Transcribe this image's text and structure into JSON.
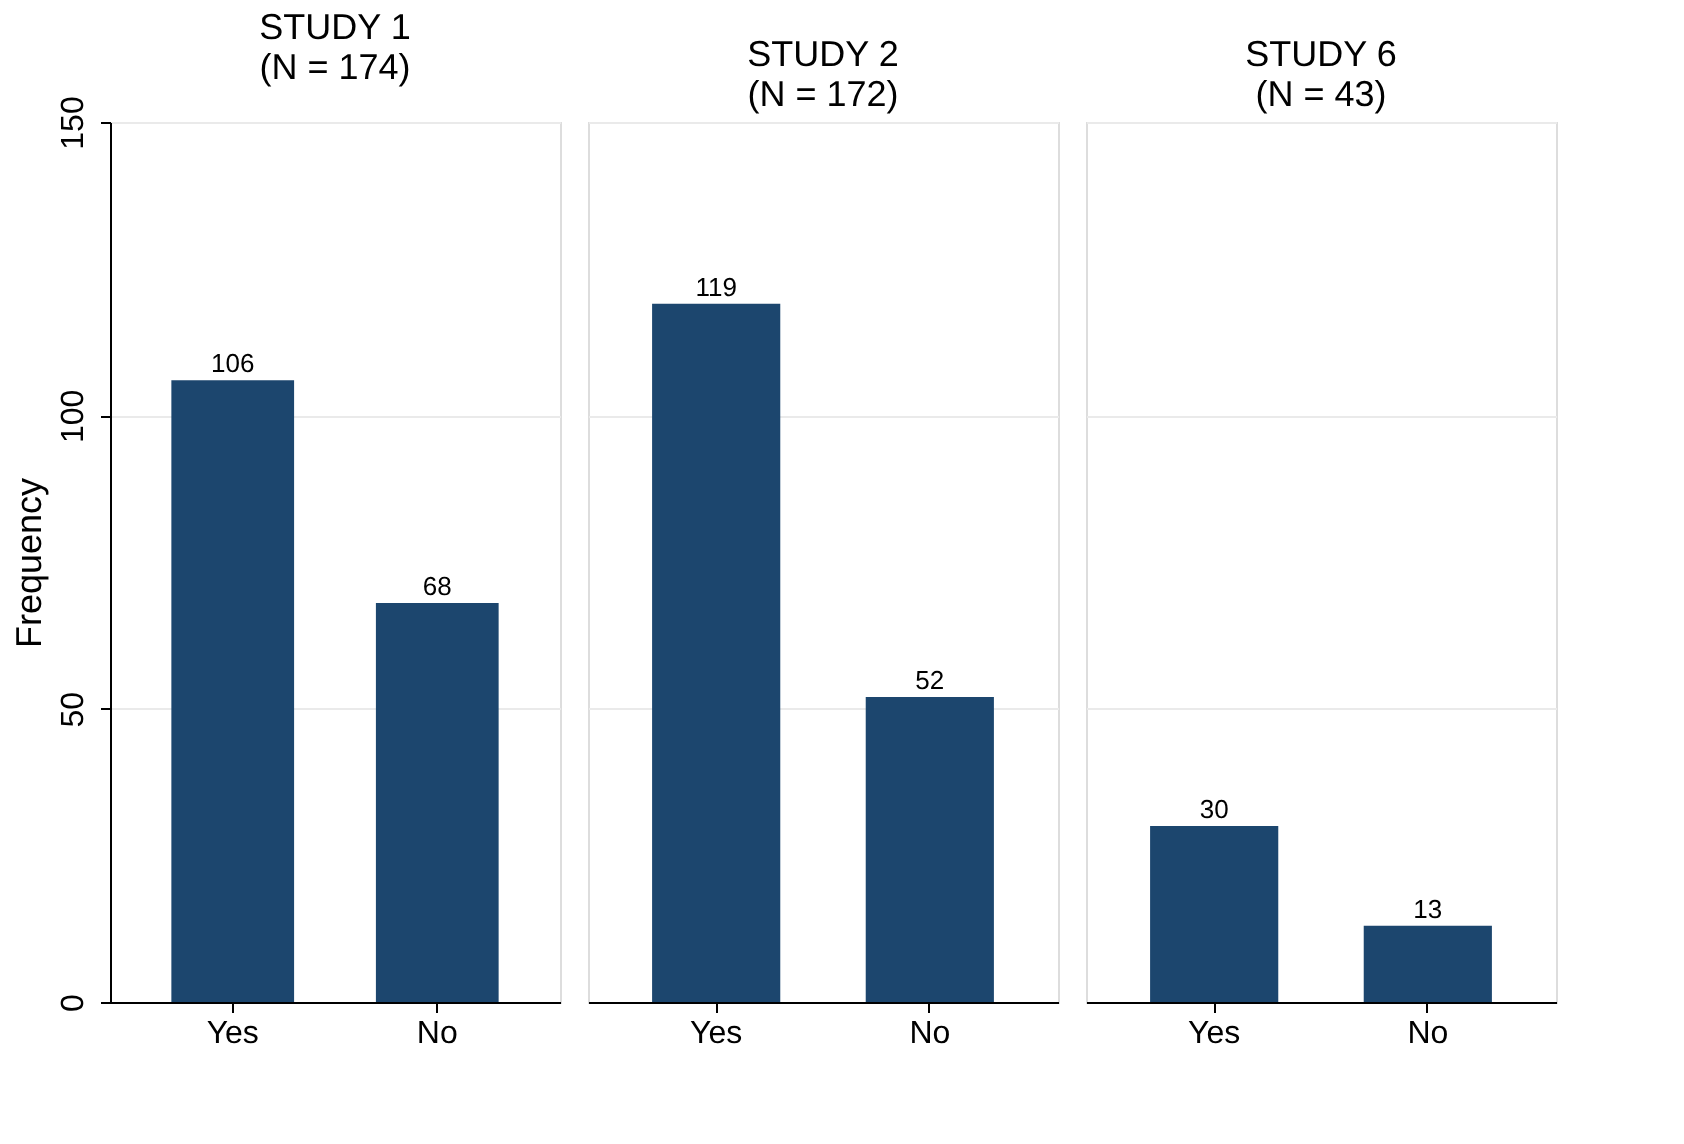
{
  "chart_data": [
    {
      "type": "bar",
      "title": "STUDY 1\n(N = 174)",
      "ylabel": "Frequency",
      "categories": [
        "Yes",
        "No"
      ],
      "values": [
        106,
        68
      ],
      "color": "#1c466e",
      "ylim": [
        0,
        150
      ],
      "yticks": [
        0,
        50,
        100,
        150
      ],
      "grid": "y",
      "data_labels": true
    },
    {
      "type": "bar",
      "title": "STUDY 2\n(N = 172)",
      "categories": [
        "Yes",
        "No"
      ],
      "values": [
        119,
        52
      ],
      "color": "#1c466e",
      "ylim": [
        0,
        150
      ],
      "yticks": [
        0,
        50,
        100,
        150
      ],
      "grid": "y",
      "data_labels": true,
      "tick_labels": "x"
    },
    {
      "type": "bar",
      "title": "STUDY 6\n(N = 43)",
      "categories": [
        "Yes",
        "No"
      ],
      "values": [
        30,
        13
      ],
      "color": "#1c466e",
      "ylim": [
        0,
        150
      ],
      "yticks": [
        0,
        50,
        100,
        150
      ],
      "grid": "y",
      "data_labels": true,
      "tick_labels": "x"
    }
  ]
}
